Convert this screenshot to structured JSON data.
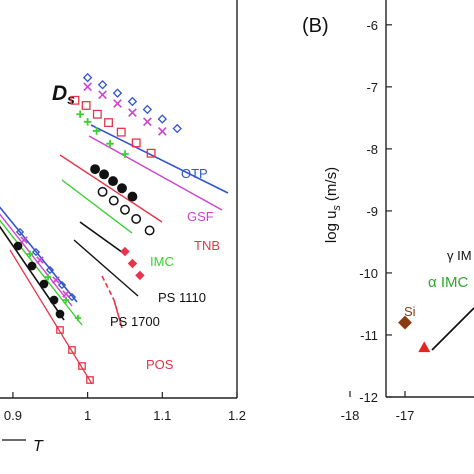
{
  "chart_data": [
    {
      "type": "scatter",
      "panel": "A (cropped)",
      "title": "D",
      "title_subscript": "s",
      "xlabel_fragment": "T",
      "xticks": [
        "0.9",
        "1",
        "1.1",
        "1.2"
      ],
      "xlim": [
        0.88,
        1.2
      ],
      "ylim": [
        0,
        1
      ],
      "series": [
        {
          "name": "OTP",
          "color": "#3355cc",
          "marker": "diamond-open",
          "points": [
            [
              1.0,
              0.805
            ],
            [
              1.02,
              0.787
            ],
            [
              1.04,
              0.766
            ],
            [
              1.06,
              0.745
            ],
            [
              1.08,
              0.725
            ],
            [
              1.1,
              0.701
            ],
            [
              1.12,
              0.677
            ]
          ]
        },
        {
          "name": "GSF",
          "color": "#cc44cc",
          "marker": "x",
          "points": [
            [
              1.0,
              0.782
            ],
            [
              1.02,
              0.762
            ],
            [
              1.04,
              0.74
            ],
            [
              1.06,
              0.717
            ],
            [
              1.08,
              0.694
            ],
            [
              1.1,
              0.67
            ]
          ]
        },
        {
          "name": "TNB",
          "color": "#e8344a",
          "marker": "square-open",
          "points": [
            [
              0.983,
              0.748
            ],
            [
              0.998,
              0.735
            ],
            [
              1.013,
              0.713
            ],
            [
              1.028,
              0.692
            ],
            [
              1.045,
              0.668
            ],
            [
              1.065,
              0.641
            ],
            [
              1.085,
              0.615
            ]
          ]
        },
        {
          "name": "IMC",
          "color": "#3ad030",
          "marker": "plus",
          "points": [
            [
              0.99,
              0.713
            ],
            [
              1.0,
              0.694
            ],
            [
              1.012,
              0.671
            ],
            [
              1.03,
              0.639
            ],
            [
              1.05,
              0.613
            ]
          ]
        },
        {
          "name": "PS 1110",
          "color": "#111111",
          "marker": "circle-filled",
          "points": [
            [
              1.01,
              0.575
            ],
            [
              1.022,
              0.562
            ],
            [
              1.034,
              0.545
            ],
            [
              1.046,
              0.527
            ],
            [
              1.06,
              0.506
            ]
          ]
        },
        {
          "name": "PS 1700",
          "color": "#111111",
          "marker": "circle-open",
          "points": [
            [
              1.02,
              0.518
            ],
            [
              1.035,
              0.496
            ],
            [
              1.05,
              0.473
            ],
            [
              1.065,
              0.45
            ],
            [
              1.083,
              0.421
            ]
          ]
        },
        {
          "name": "POS",
          "color": "#e8344a",
          "marker": "diamond-filled",
          "points": [
            [
              1.05,
              0.368
            ],
            [
              1.06,
              0.338
            ],
            [
              1.07,
              0.308
            ]
          ]
        }
      ]
    },
    {
      "type": "scatter",
      "panel": "B (cropped)",
      "panel_label": "(B)",
      "ylabel": "log u",
      "ylabel_subscript": "s",
      "ylabel_unit": "(m/s)",
      "yticks": [
        "-6",
        "-7",
        "-8",
        "-9",
        "-10",
        "-11",
        "-12"
      ],
      "xticks": [
        "-18",
        "-17"
      ],
      "xlim": [
        -18.2,
        -16.3
      ],
      "ylim": [
        -12,
        -5.6
      ],
      "labels": [
        {
          "text": "γ IM",
          "color": "#111111"
        },
        {
          "text": "α IMC",
          "color": "#2ea82e"
        },
        {
          "text": "Si",
          "color": "#8b3a10"
        }
      ],
      "points": [
        {
          "name": "Si",
          "x": -17.0,
          "y": -10.8,
          "marker": "diamond-filled",
          "color": "#8b3a10"
        },
        {
          "name": "",
          "x": -16.65,
          "y": -11.2,
          "marker": "triangle-filled",
          "color": "#e8241e"
        }
      ]
    }
  ]
}
